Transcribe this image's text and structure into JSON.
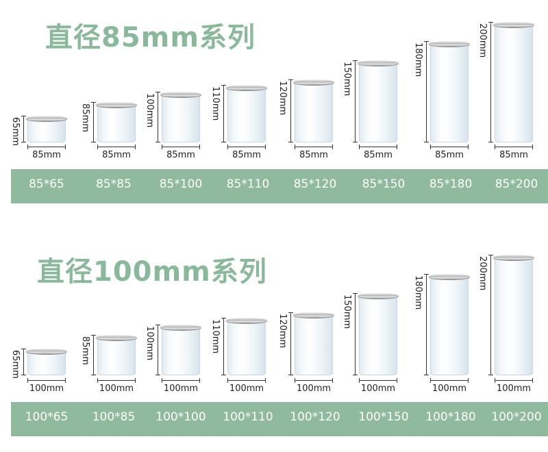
{
  "sections": [
    {
      "title": "直径85mm系列",
      "width_label": "85mm",
      "items": [
        {
          "height_label": "65mm",
          "size": "85*65",
          "height_value": 65
        },
        {
          "height_label": "85mm",
          "size": "85*85",
          "height_value": 85
        },
        {
          "height_label": "100mm",
          "size": "85*100",
          "height_value": 100
        },
        {
          "height_label": "110mm",
          "size": "85*110",
          "height_value": 110
        },
        {
          "height_label": "120mm",
          "size": "85*120",
          "height_value": 120
        },
        {
          "height_label": "150mm",
          "size": "85*150",
          "height_value": 150
        },
        {
          "height_label": "180mm",
          "size": "85*180",
          "height_value": 180
        },
        {
          "height_label": "200mm",
          "size": "85*200",
          "height_value": 200
        }
      ]
    },
    {
      "title": "直径100mm系列",
      "width_label": "100mm",
      "items": [
        {
          "height_label": "65mm",
          "size": "100*65",
          "height_value": 65
        },
        {
          "height_label": "85mm",
          "size": "100*85",
          "height_value": 85
        },
        {
          "height_label": "100mm",
          "size": "100*100",
          "height_value": 100
        },
        {
          "height_label": "110mm",
          "size": "100*110",
          "height_value": 110
        },
        {
          "height_label": "120mm",
          "size": "100*120",
          "height_value": 120
        },
        {
          "height_label": "150mm",
          "size": "100*150",
          "height_value": 150
        },
        {
          "height_label": "180mm",
          "size": "100*180",
          "height_value": 180
        },
        {
          "height_label": "200mm",
          "size": "100*200",
          "height_value": 200
        }
      ]
    }
  ],
  "colors": {
    "title": "#8ab89a",
    "band": "#8fba9d",
    "band_text": "#ffffff"
  }
}
